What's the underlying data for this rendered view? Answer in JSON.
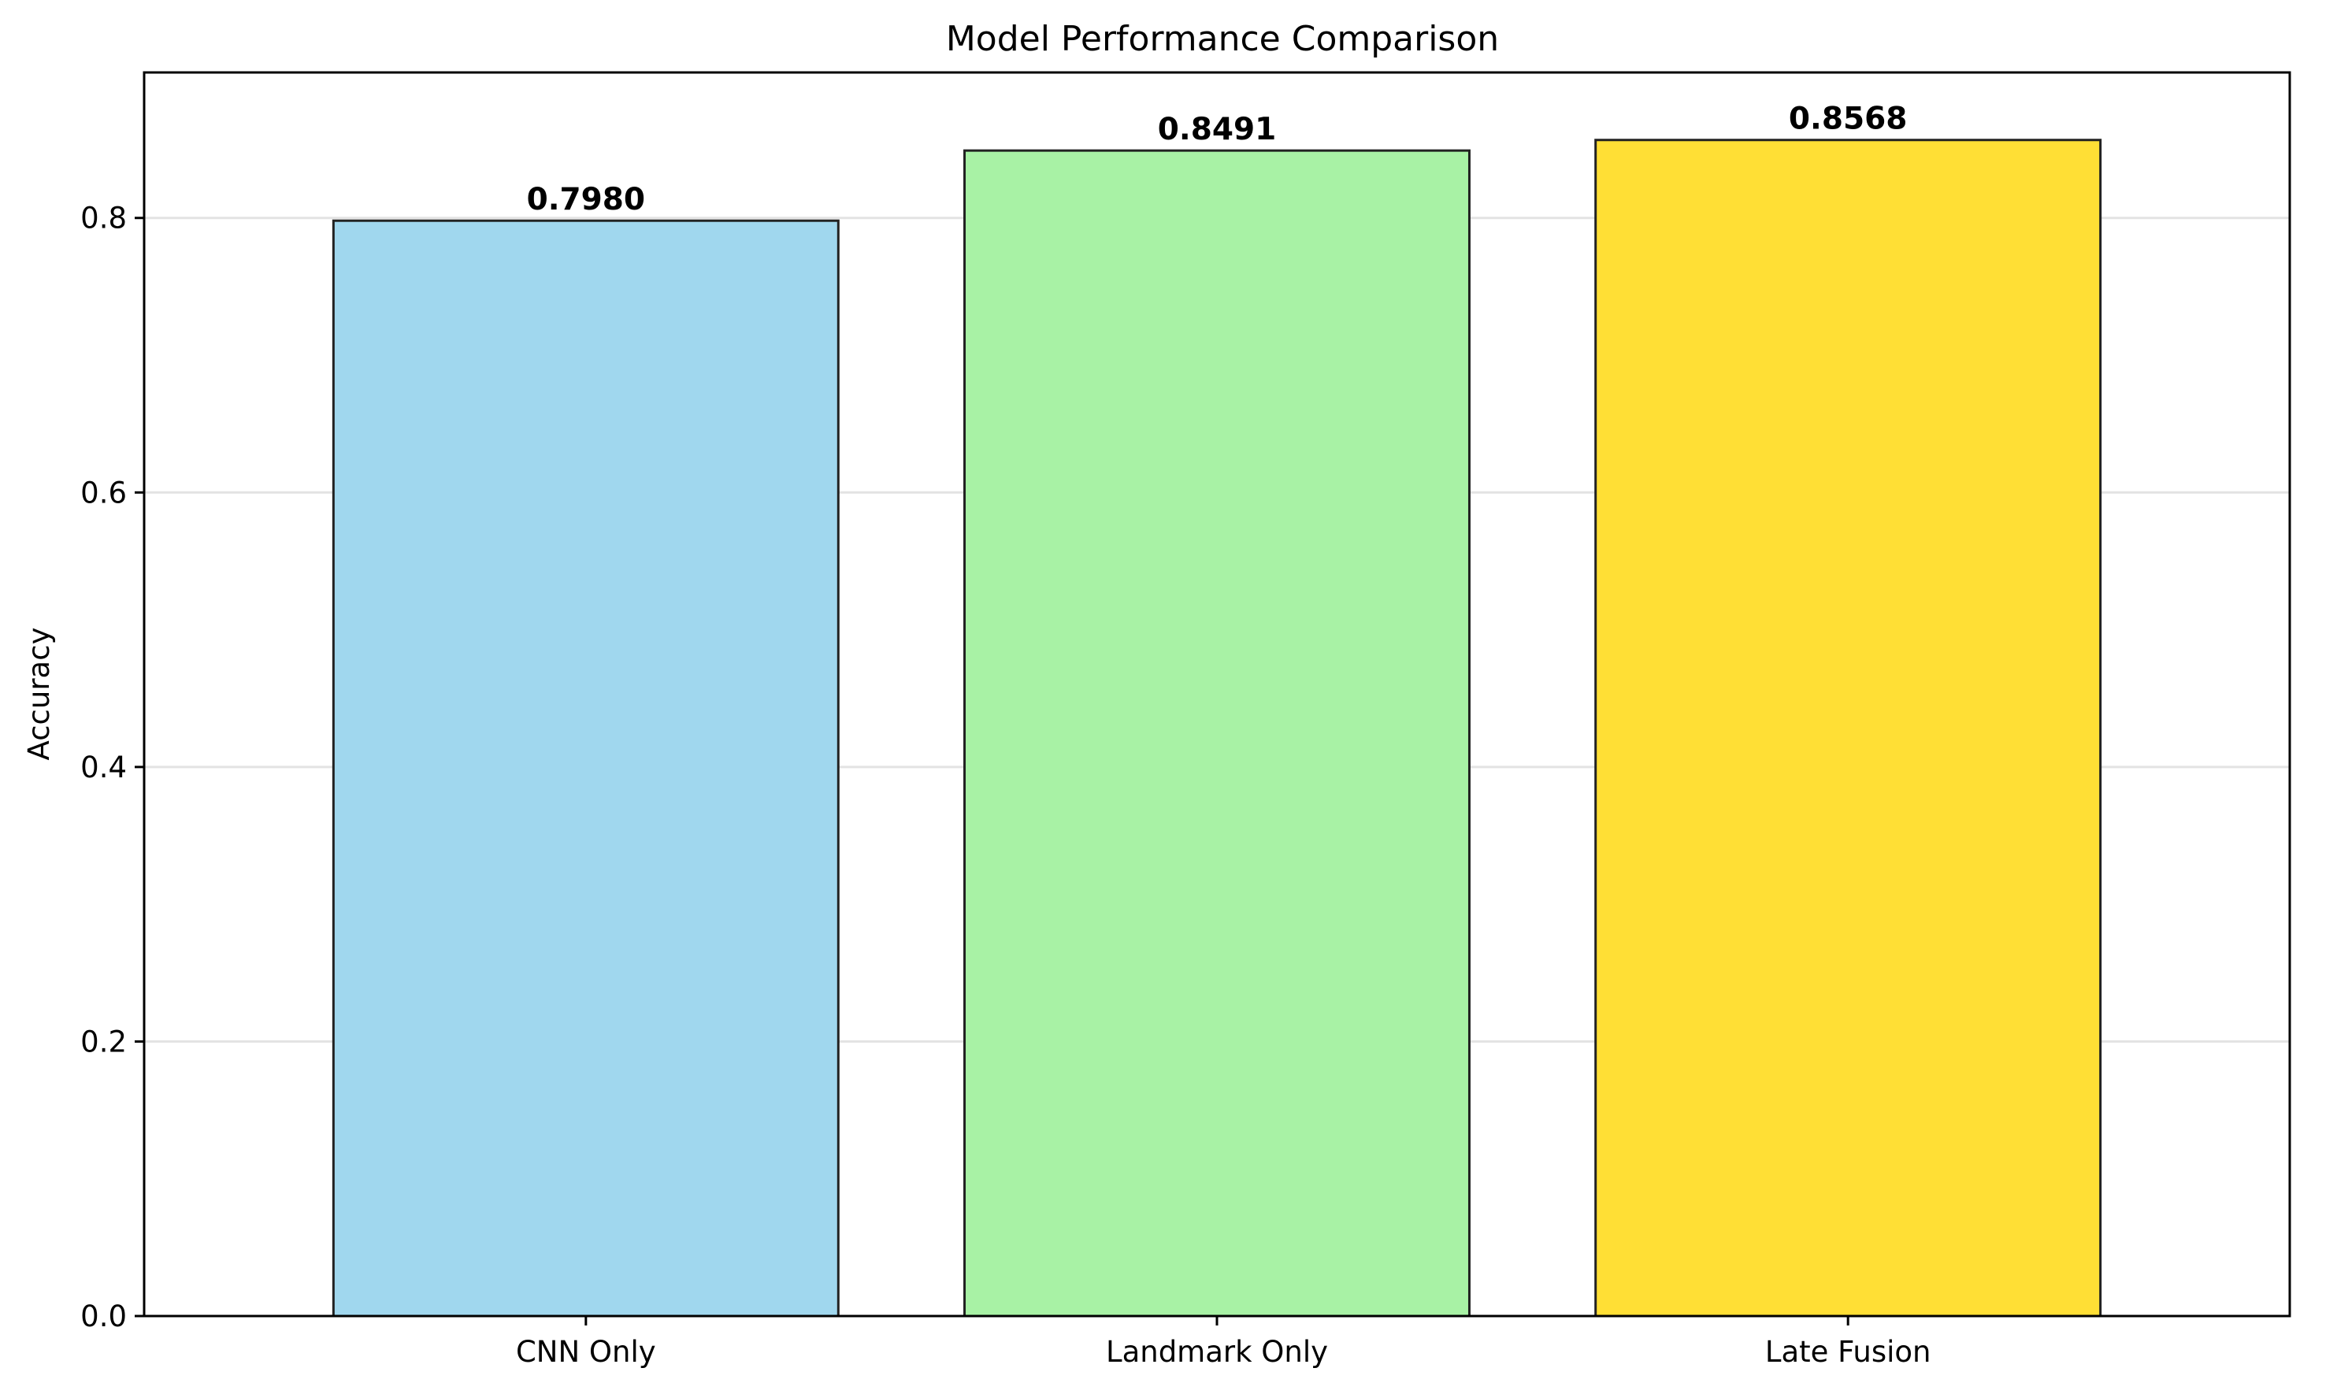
{
  "chart_data": {
    "type": "bar",
    "title": "Model Performance Comparison",
    "xlabel": "",
    "ylabel": "Accuracy",
    "categories": [
      "CNN Only",
      "Landmark Only",
      "Late Fusion"
    ],
    "values": [
      0.798,
      0.8491,
      0.8568
    ],
    "data_labels": [
      "0.7980",
      "0.8491",
      "0.8568"
    ],
    "colors": [
      "#a0d7ee",
      "#a8f2a5",
      "#ffdf35"
    ],
    "edge_color": "#222222",
    "ylim": [
      0,
      0.906
    ],
    "yticks": [
      0.0,
      0.2,
      0.4,
      0.6,
      0.8
    ],
    "ytick_labels": [
      "0.0",
      "0.2",
      "0.4",
      "0.6",
      "0.8"
    ],
    "grid": "y",
    "legend": "none"
  }
}
